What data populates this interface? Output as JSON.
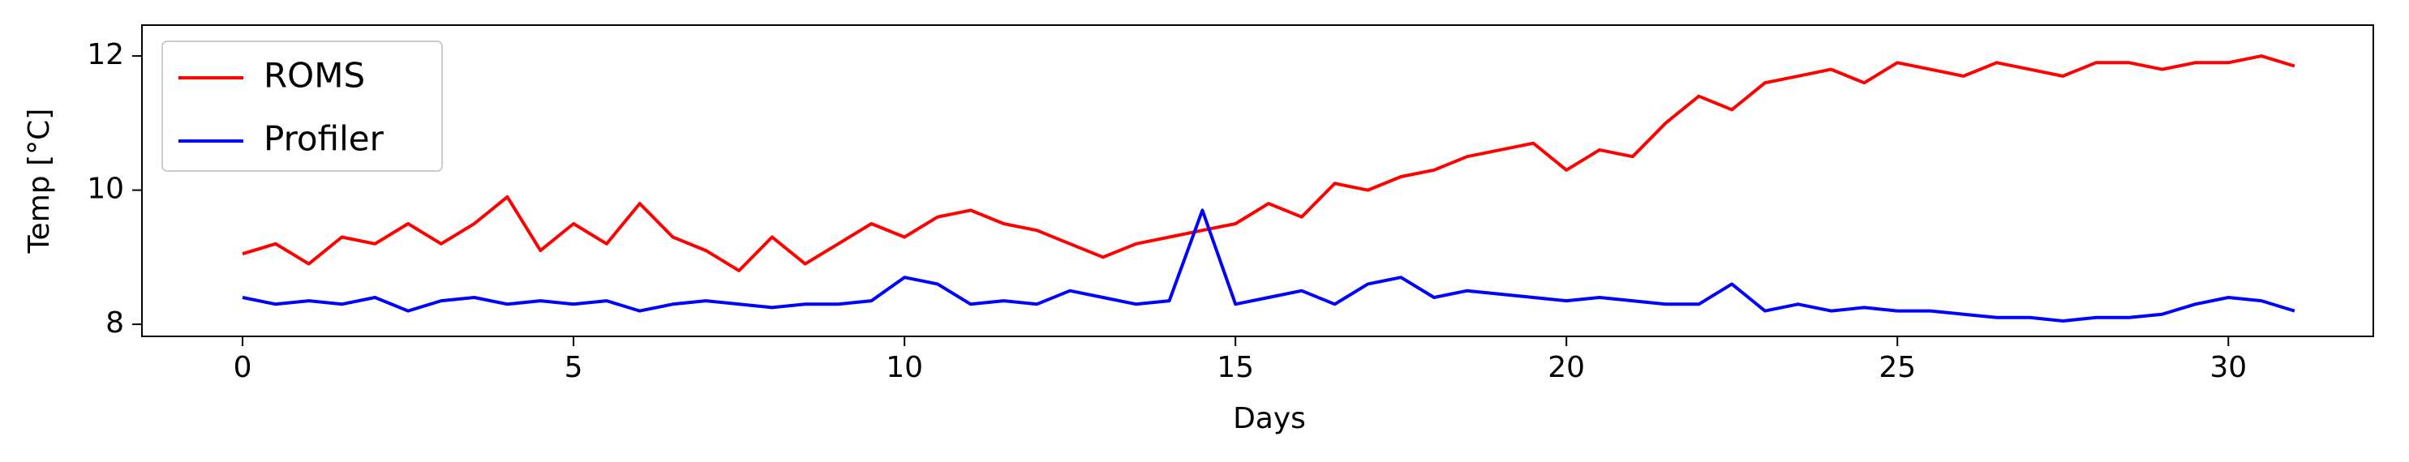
{
  "chart_data": {
    "type": "line",
    "xlabel": "Days",
    "ylabel": "Temp [°C]",
    "x": [
      0,
      0.5,
      1,
      1.5,
      2,
      2.5,
      3,
      3.5,
      4,
      4.5,
      5,
      5.5,
      6,
      6.5,
      7,
      7.5,
      8,
      8.5,
      9,
      9.5,
      10,
      10.5,
      11,
      11.5,
      12,
      12.5,
      13,
      13.5,
      14,
      14.5,
      15,
      15.5,
      16,
      16.5,
      17,
      17.5,
      18,
      18.5,
      19,
      19.5,
      20,
      20.5,
      21,
      21.5,
      22,
      22.5,
      23,
      23.5,
      24,
      24.5,
      25,
      25.5,
      26,
      26.5,
      27,
      27.5,
      28,
      28.5,
      29,
      29.5,
      30,
      30.5,
      31
    ],
    "series": [
      {
        "name": "ROMS",
        "color": "#ff0000",
        "values": [
          9.05,
          9.2,
          8.9,
          9.3,
          9.2,
          9.5,
          9.2,
          9.5,
          9.9,
          9.1,
          9.5,
          9.2,
          9.8,
          9.3,
          9.1,
          8.8,
          9.3,
          8.9,
          9.2,
          9.5,
          9.3,
          9.6,
          9.7,
          9.5,
          9.4,
          9.2,
          9.0,
          9.2,
          9.3,
          9.4,
          9.5,
          9.8,
          9.6,
          10.1,
          10.0,
          10.2,
          10.3,
          10.5,
          10.6,
          10.7,
          10.3,
          10.6,
          10.5,
          11.0,
          11.4,
          11.2,
          11.6,
          11.7,
          11.8,
          11.6,
          11.9,
          11.8,
          11.7,
          11.9,
          11.8,
          11.7,
          11.9,
          11.9,
          11.8,
          11.9,
          11.9,
          12.0,
          11.85
        ]
      },
      {
        "name": "Profiler",
        "color": "#0000ff",
        "values": [
          8.4,
          8.3,
          8.35,
          8.3,
          8.4,
          8.2,
          8.35,
          8.4,
          8.3,
          8.35,
          8.3,
          8.35,
          8.2,
          8.3,
          8.35,
          8.3,
          8.25,
          8.3,
          8.3,
          8.35,
          8.7,
          8.6,
          8.3,
          8.35,
          8.3,
          8.5,
          8.4,
          8.3,
          8.35,
          9.7,
          8.3,
          8.4,
          8.5,
          8.3,
          8.6,
          8.7,
          8.4,
          8.5,
          8.45,
          8.4,
          8.35,
          8.4,
          8.35,
          8.3,
          8.3,
          8.6,
          8.2,
          8.3,
          8.2,
          8.25,
          8.2,
          8.2,
          8.15,
          8.1,
          8.1,
          8.05,
          8.1,
          8.1,
          8.15,
          8.3,
          8.4,
          8.35,
          8.2
        ]
      }
    ],
    "xlim": [
      -1.52,
      32.19
    ],
    "xticks": [
      0,
      5,
      10,
      15,
      20,
      25,
      30
    ],
    "ylim": [
      7.82,
      12.46
    ],
    "yticks": [
      8,
      10,
      12
    ],
    "grid": false,
    "legend": "upper left"
  }
}
